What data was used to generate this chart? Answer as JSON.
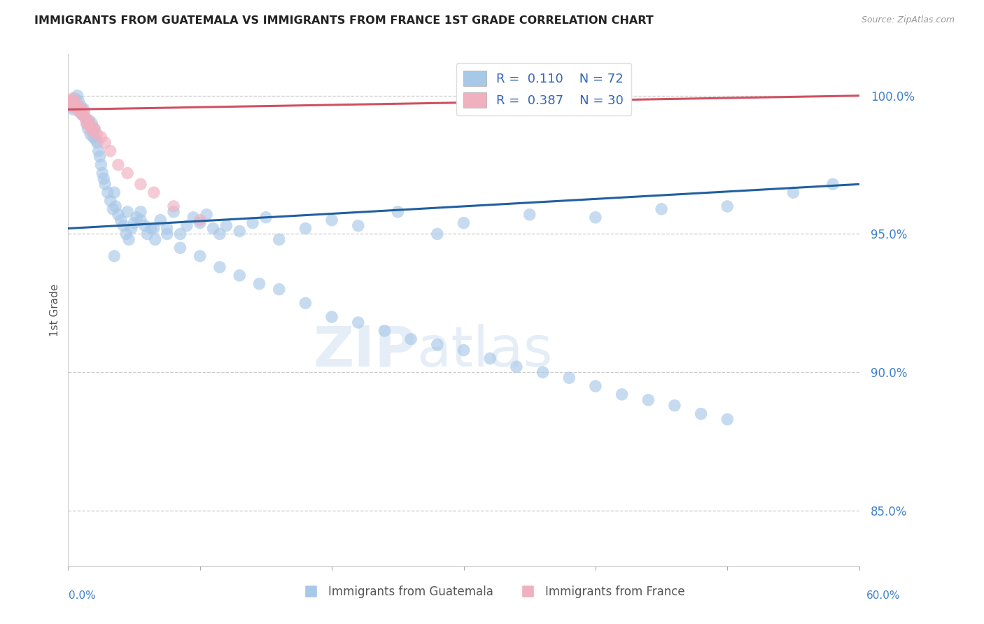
{
  "title": "IMMIGRANTS FROM GUATEMALA VS IMMIGRANTS FROM FRANCE 1ST GRADE CORRELATION CHART",
  "source": "Source: ZipAtlas.com",
  "ylabel": "1st Grade",
  "xlim": [
    0.0,
    60.0
  ],
  "ylim": [
    83.0,
    101.5
  ],
  "right_yticks": [
    85.0,
    90.0,
    95.0,
    100.0
  ],
  "legend_r_blue": "R =  0.110",
  "legend_n_blue": "N = 72",
  "legend_r_pink": "R =  0.387",
  "legend_n_pink": "N = 30",
  "blue_color": "#a8c8e8",
  "pink_color": "#f0b0c0",
  "blue_line_color": "#2060a0",
  "pink_line_color": "#d05060",
  "watermark_zip": "ZIP",
  "watermark_atlas": "atlas",
  "guatemala_x": [
    0.2,
    0.3,
    0.4,
    0.5,
    0.6,
    0.7,
    0.8,
    0.9,
    1.0,
    1.1,
    1.2,
    1.3,
    1.4,
    1.5,
    1.6,
    1.7,
    1.8,
    1.9,
    2.0,
    2.1,
    2.2,
    2.3,
    2.4,
    2.5,
    2.6,
    2.7,
    2.8,
    3.0,
    3.2,
    3.4,
    3.6,
    3.8,
    4.0,
    4.2,
    4.4,
    4.6,
    4.8,
    5.0,
    5.2,
    5.5,
    5.8,
    6.0,
    6.3,
    6.6,
    7.0,
    7.5,
    8.0,
    8.5,
    9.0,
    9.5,
    10.0,
    10.5,
    11.0,
    11.5,
    12.0,
    13.0,
    14.0,
    15.0,
    16.0,
    18.0,
    20.0,
    22.0,
    25.0,
    28.0,
    30.0,
    35.0,
    40.0,
    45.0,
    50.0,
    55.0,
    58.0,
    3.5
  ],
  "guatemala_y": [
    99.8,
    99.6,
    99.5,
    99.9,
    99.7,
    100.0,
    99.8,
    99.4,
    99.6,
    99.3,
    99.5,
    99.2,
    99.0,
    98.8,
    99.1,
    98.6,
    99.0,
    98.5,
    98.8,
    98.4,
    98.3,
    98.0,
    97.8,
    97.5,
    97.2,
    97.0,
    96.8,
    96.5,
    96.2,
    95.9,
    96.0,
    95.7,
    95.5,
    95.3,
    95.0,
    94.8,
    95.2,
    95.4,
    95.6,
    95.8,
    95.3,
    95.0,
    95.2,
    94.8,
    95.5,
    95.2,
    95.8,
    95.0,
    95.3,
    95.6,
    95.4,
    95.7,
    95.2,
    95.0,
    95.3,
    95.1,
    95.4,
    95.6,
    94.8,
    95.2,
    95.5,
    95.3,
    95.8,
    95.0,
    95.4,
    95.7,
    95.6,
    95.9,
    96.0,
    96.5,
    96.8,
    94.2
  ],
  "guatemala_y_low": [
    96.5,
    95.8,
    95.5,
    95.2,
    95.0,
    94.5,
    94.2,
    93.8,
    93.5,
    93.2,
    93.0,
    92.5,
    92.0,
    91.8,
    91.5,
    91.2,
    91.0,
    90.8,
    90.5,
    90.2,
    90.0,
    89.8,
    89.5,
    89.2,
    89.0,
    88.8,
    88.5,
    88.3
  ],
  "guatemala_x_low": [
    3.5,
    4.5,
    5.5,
    6.5,
    7.5,
    8.5,
    10.0,
    11.5,
    13.0,
    14.5,
    16.0,
    18.0,
    20.0,
    22.0,
    24.0,
    26.0,
    28.0,
    30.0,
    32.0,
    34.0,
    36.0,
    38.0,
    40.0,
    42.0,
    44.0,
    46.0,
    48.0,
    50.0
  ],
  "france_x": [
    0.15,
    0.25,
    0.35,
    0.45,
    0.5,
    0.6,
    0.7,
    0.8,
    0.9,
    1.0,
    1.1,
    1.2,
    1.3,
    1.4,
    1.5,
    1.6,
    1.7,
    1.8,
    1.9,
    2.0,
    2.2,
    2.5,
    2.8,
    3.2,
    3.8,
    4.5,
    5.5,
    6.5,
    8.0,
    10.0
  ],
  "france_y": [
    99.7,
    99.8,
    99.9,
    99.6,
    99.8,
    99.7,
    99.5,
    99.6,
    99.4,
    99.5,
    99.3,
    99.4,
    99.2,
    99.0,
    99.1,
    99.0,
    98.8,
    98.9,
    98.7,
    98.8,
    98.6,
    98.5,
    98.3,
    98.0,
    97.5,
    97.2,
    96.8,
    96.5,
    96.0,
    95.5
  ],
  "blue_trend_x": [
    0.0,
    60.0
  ],
  "blue_trend_y": [
    95.2,
    96.8
  ],
  "pink_trend_x": [
    0.0,
    60.0
  ],
  "pink_trend_y": [
    99.5,
    100.0
  ]
}
